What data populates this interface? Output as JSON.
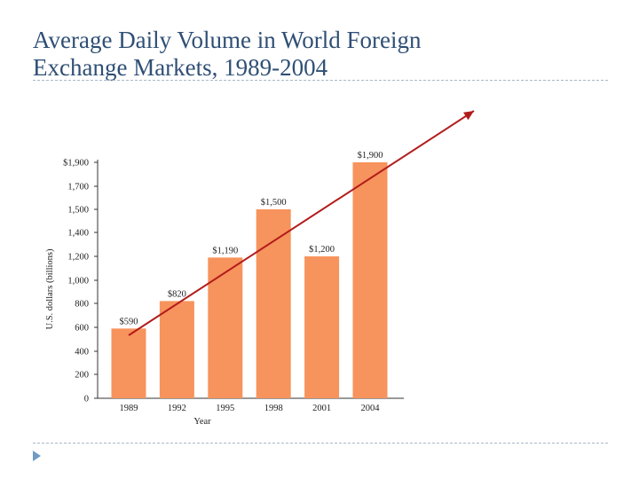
{
  "slide": {
    "title_line1": "Average Daily Volume in World Foreign",
    "title_line2": "Exchange Markets, 1989-2004"
  },
  "colors": {
    "title": "#2f4f75",
    "bar": "#f7935c",
    "trend_arrow": "#b21c1c",
    "rule": "#aab8c6",
    "bullet": "#6f9bc4"
  },
  "chart_data": {
    "type": "bar",
    "categories": [
      "1989",
      "1992",
      "1995",
      "1998",
      "2001",
      "2004"
    ],
    "values": [
      590,
      820,
      1190,
      1500,
      1200,
      1900
    ],
    "value_labels": [
      "$590",
      "$820",
      "$1,190",
      "$1,500",
      "$1,200",
      "$1,900"
    ],
    "xlabel": "Year",
    "ylabel": "U.S. dollars (billions)",
    "ylim": [
      0,
      1900
    ],
    "yticks": [
      0,
      200,
      400,
      600,
      800,
      1000,
      1200,
      1400,
      1500,
      1700,
      1900
    ],
    "ytick_labels": [
      "0",
      "200",
      "400",
      "600",
      "800",
      "1,000",
      "1,200",
      "1,400",
      "1,500",
      "1,700",
      "$1,900"
    ],
    "grid": false,
    "legend": "none",
    "annotation": "upward trend arrow drawn from the 1989 bar across to beyond the 2004 bar"
  }
}
